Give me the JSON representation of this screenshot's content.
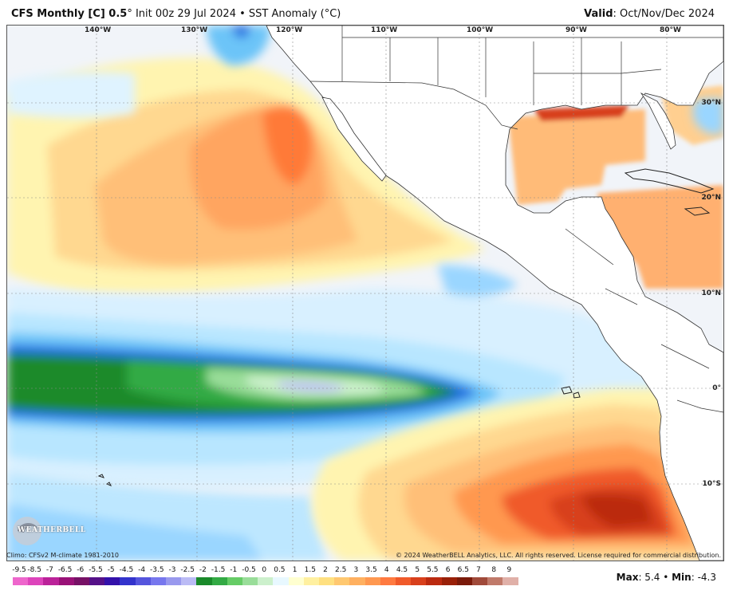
{
  "header": {
    "title_bold": "CFS Monthly [C] 0.5",
    "title_rest": "° Init 00z 29 Jul 2024 • SST Anomaly (°C)",
    "valid_label": "Valid",
    "valid_value": ": Oct/Nov/Dec 2024"
  },
  "map": {
    "lon_labels": [
      "140°W",
      "130°W",
      "120°W",
      "110°W",
      "100°W",
      "90°W",
      "80°W"
    ],
    "lat_labels": [
      "30°N",
      "20°N",
      "10°N",
      "0°",
      "10°S"
    ]
  },
  "logo": {
    "text": "WEATHERBELL"
  },
  "footer": {
    "climo": "Climo: CFSv2 M-climate 1981-2010",
    "copyright": "© 2024 WeatherBELL Analytics, LLC. All rights reserved. License required for commercial distribution."
  },
  "colorbar": {
    "labels": [
      "-9.5",
      "-8.5",
      "-7",
      "-6.5",
      "-6",
      "-5.5",
      "-5",
      "-4.5",
      "-4",
      "-3.5",
      "-3",
      "-2.5",
      "-2",
      "-1.5",
      "-1",
      "-0.5",
      "0",
      "0.5",
      "1",
      "1.5",
      "2",
      "2.5",
      "3",
      "3.5",
      "4",
      "4.5",
      "5",
      "5.5",
      "6",
      "6.5",
      "7",
      "8",
      "9"
    ],
    "colors": [
      "#ee66cc",
      "#dd44bb",
      "#bb2299",
      "#991177",
      "#771166",
      "#551188",
      "#3311aa",
      "#3333cc",
      "#5555dd",
      "#7777ee",
      "#9999ee",
      "#bbbbf5",
      "#1a8a2a",
      "#33aa44",
      "#66cc66",
      "#99dd99",
      "#ccf0cc",
      "#e8f8ff",
      "#ffffd0",
      "#fff0a0",
      "#ffe080",
      "#ffc870",
      "#ffb060",
      "#ff9850",
      "#ff7a40",
      "#f05a2a",
      "#d8401c",
      "#bb2a10",
      "#992008",
      "#7a1a0a",
      "#a04a3a",
      "#c07a6a",
      "#e0b0a8"
    ]
  },
  "stats": {
    "max_label": "Max",
    "max_value": ": 5.4 • ",
    "min_label": "Min",
    "min_value": ": -4.3"
  }
}
